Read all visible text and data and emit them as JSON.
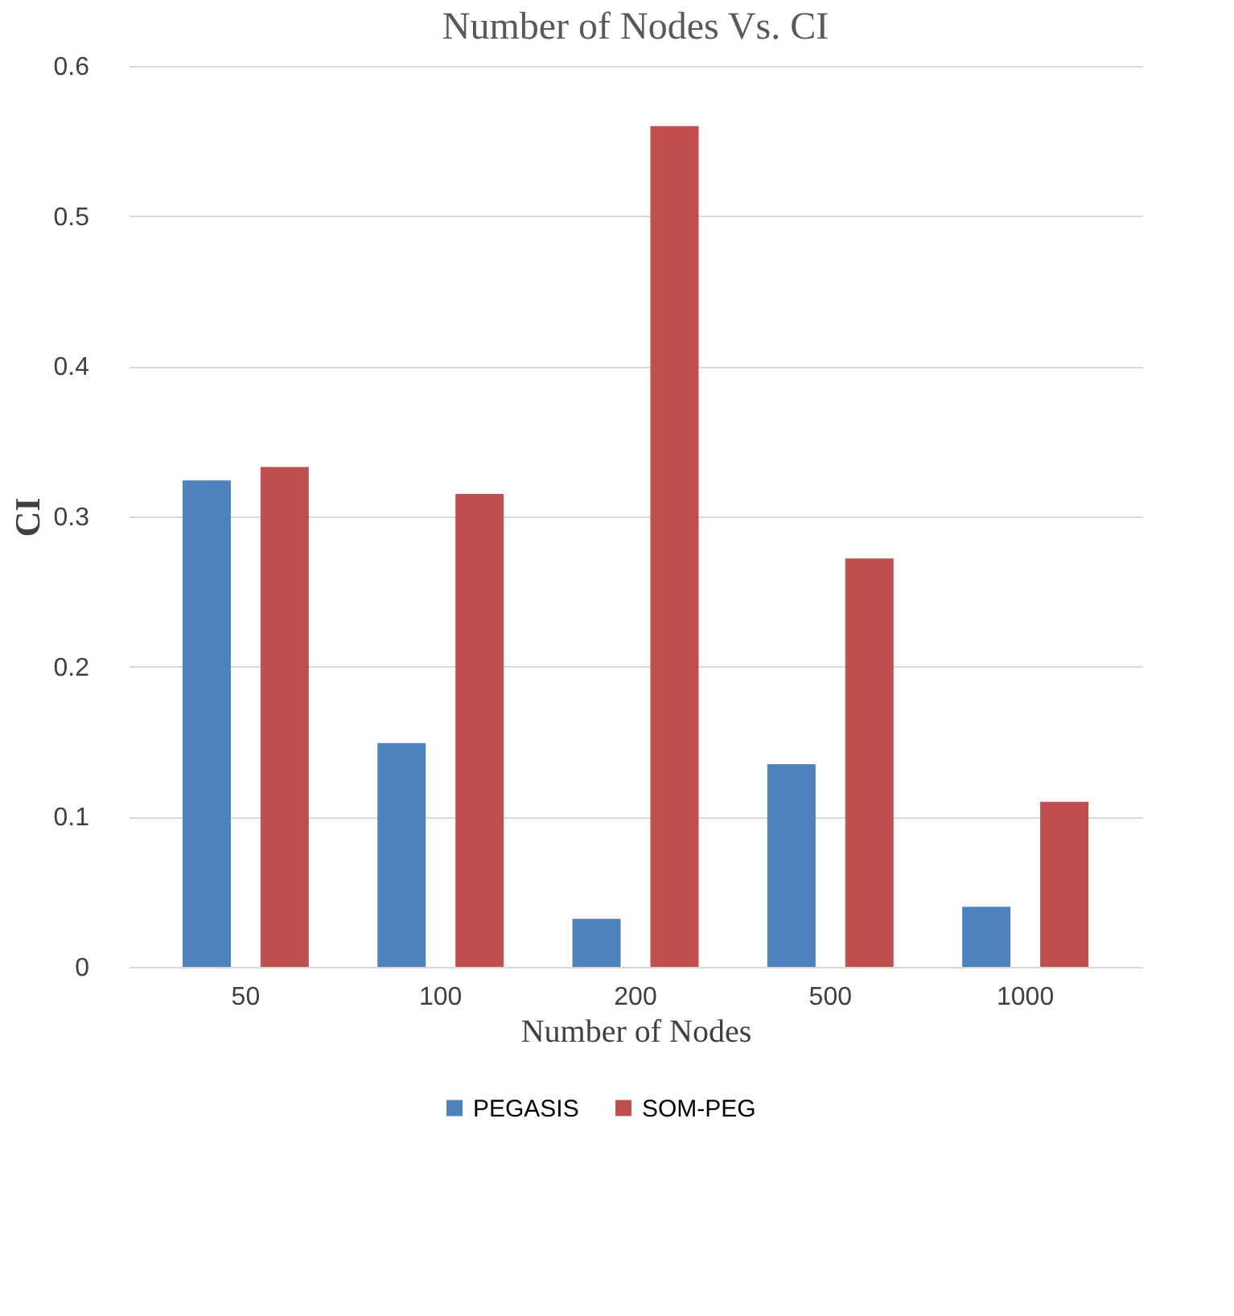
{
  "chart_data": {
    "type": "bar",
    "title": "Number of Nodes Vs. CI",
    "xlabel": "Number of Nodes",
    "ylabel": "CI",
    "categories": [
      "50",
      "100",
      "200",
      "500",
      "1000"
    ],
    "series": [
      {
        "name": "PEGASIS",
        "color": "#4f81bd",
        "values": [
          0.324,
          0.149,
          0.032,
          0.135,
          0.04
        ]
      },
      {
        "name": "SOM-PEG",
        "color": "#c0504d",
        "values": [
          0.333,
          0.315,
          0.56,
          0.272,
          0.11
        ]
      }
    ],
    "ylim": [
      0,
      0.6
    ],
    "yticks": [
      0,
      0.1,
      0.2,
      0.3,
      0.4,
      0.5,
      0.6
    ],
    "grid": "y",
    "legend": "bottom"
  }
}
